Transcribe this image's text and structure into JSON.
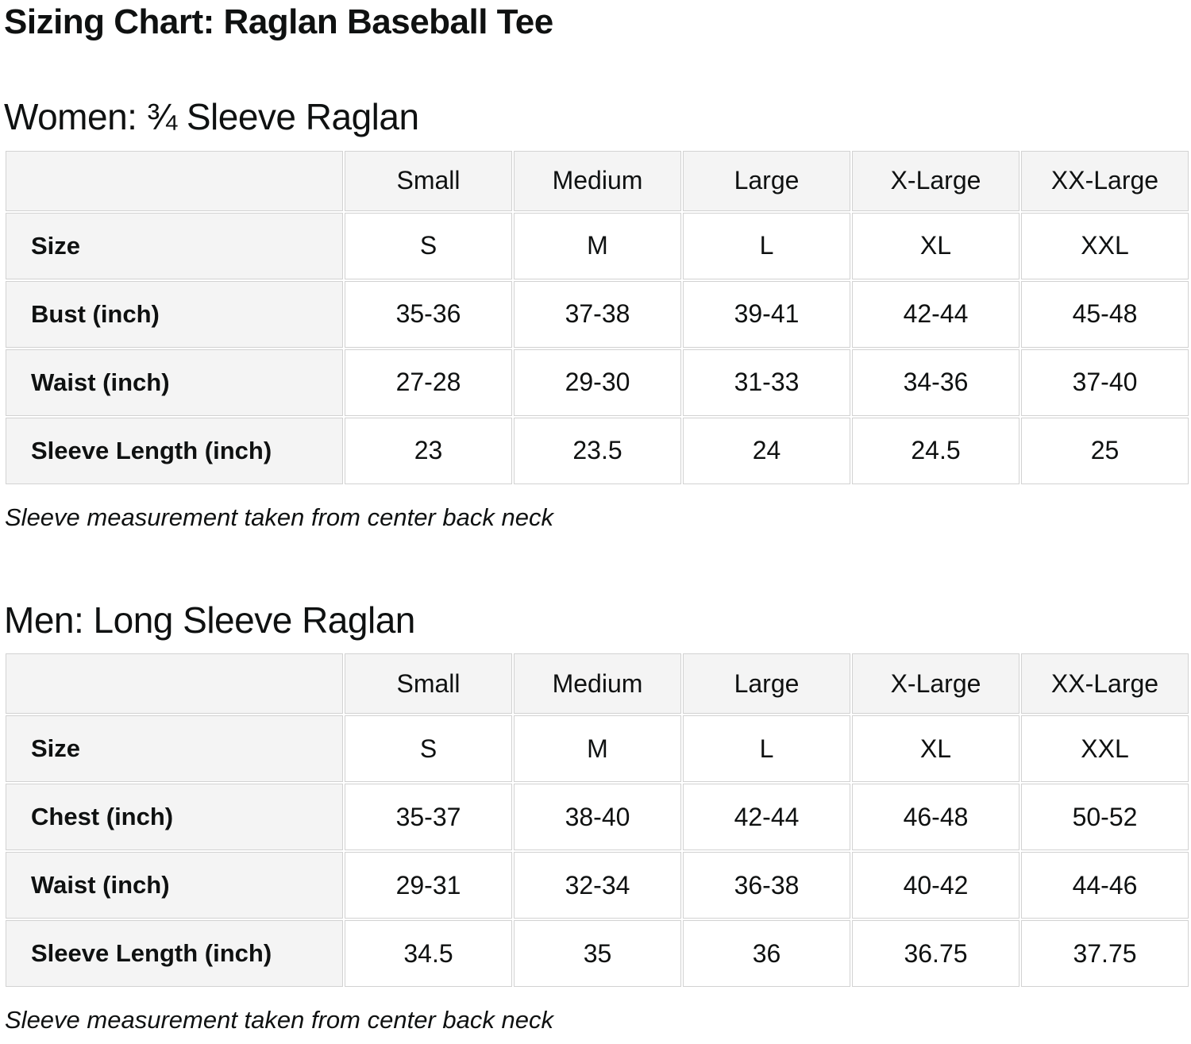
{
  "page": {
    "title": "Sizing Chart: Raglan Baseball Tee"
  },
  "colors": {
    "header_cell_background": "#f4f4f4",
    "cell_border": "#d2d2d2",
    "text": "#0f1111",
    "page_background": "#ffffff"
  },
  "sections": [
    {
      "heading": "Women: ¾ Sleeve Raglan",
      "note": "Sleeve measurement taken from center back neck",
      "table": {
        "columns": [
          "",
          "Small",
          "Medium",
          "Large",
          "X-Large",
          "XX-Large"
        ],
        "rows": [
          {
            "label": "Size",
            "values": [
              "S",
              "M",
              "L",
              "XL",
              "XXL"
            ]
          },
          {
            "label": "Bust (inch)",
            "values": [
              "35-36",
              "37-38",
              "39-41",
              "42-44",
              "45-48"
            ]
          },
          {
            "label": "Waist (inch)",
            "values": [
              "27-28",
              "29-30",
              "31-33",
              "34-36",
              "37-40"
            ]
          },
          {
            "label": "Sleeve Length (inch)",
            "values": [
              "23",
              "23.5",
              "24",
              "24.5",
              "25"
            ]
          }
        ]
      }
    },
    {
      "heading": "Men: Long Sleeve Raglan",
      "note": "Sleeve measurement taken from center back neck",
      "table": {
        "columns": [
          "",
          "Small",
          "Medium",
          "Large",
          "X-Large",
          "XX-Large"
        ],
        "rows": [
          {
            "label": "Size",
            "values": [
              "S",
              "M",
              "L",
              "XL",
              "XXL"
            ]
          },
          {
            "label": "Chest (inch)",
            "values": [
              "35-37",
              "38-40",
              "42-44",
              "46-48",
              "50-52"
            ]
          },
          {
            "label": "Waist (inch)",
            "values": [
              "29-31",
              "32-34",
              "36-38",
              "40-42",
              "44-46"
            ]
          },
          {
            "label": "Sleeve Length (inch)",
            "values": [
              "34.5",
              "35",
              "36",
              "36.75",
              "37.75"
            ]
          }
        ]
      }
    }
  ]
}
